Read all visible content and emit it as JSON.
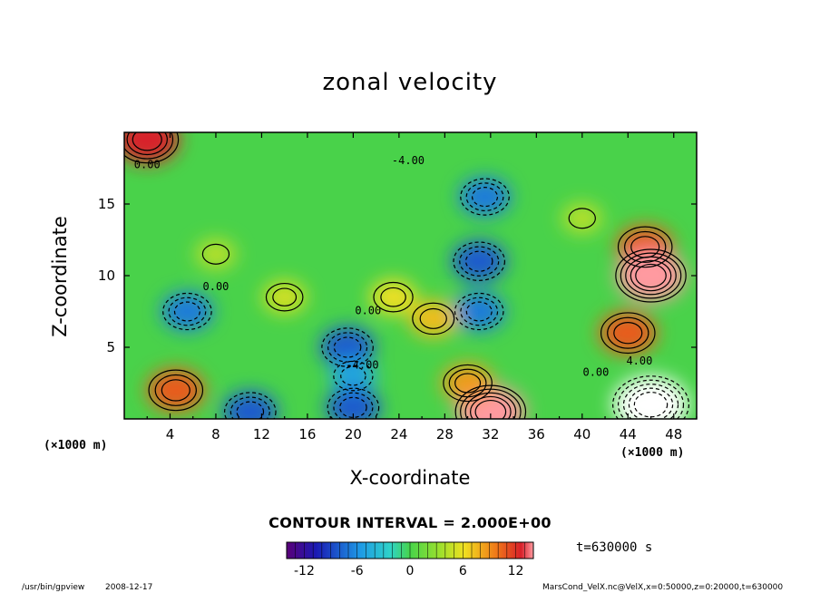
{
  "chart_data": {
    "type": "heatmap",
    "title": "zonal velocity",
    "xlabel": "X-coordinate",
    "ylabel": "Z-coordinate",
    "x_unit": "(×1000 m)",
    "y_unit": "(×1000 m)",
    "xlim": [
      0,
      50
    ],
    "ylim": [
      0,
      20
    ],
    "x_ticks": [
      "4",
      "8",
      "12",
      "16",
      "20",
      "24",
      "28",
      "32",
      "36",
      "40",
      "44",
      "48"
    ],
    "y_ticks": [
      "5",
      "10",
      "15"
    ],
    "contour_interval": "CONTOUR INTERVAL = 2.000E+00",
    "contour_labels": [
      {
        "text": "0.00",
        "x": 2.0,
        "z": 17.5
      },
      {
        "text": "-4.00",
        "x": 24.8,
        "z": 17.8
      },
      {
        "text": "0.00",
        "x": 8.0,
        "z": 9.0
      },
      {
        "text": "0.00",
        "x": 21.3,
        "z": 7.3
      },
      {
        "text": "-4.00",
        "x": 20.8,
        "z": 3.5
      },
      {
        "text": "0.00",
        "x": 41.2,
        "z": 3.0
      },
      {
        "text": "4.00",
        "x": 45.0,
        "z": 3.8
      }
    ],
    "colorbar": {
      "range": [
        -14,
        14
      ],
      "ticks": [
        "-12",
        "-6",
        "0",
        "6",
        "12"
      ],
      "colormap": "rainbow"
    },
    "time": "t=630000 s",
    "features": [
      {
        "x": 5.5,
        "z": 7.5,
        "value": -8
      },
      {
        "x": 19.5,
        "z": 5.0,
        "value": -9
      },
      {
        "x": 20.0,
        "z": 3.0,
        "value": -6
      },
      {
        "x": 31.0,
        "z": 11.0,
        "value": -9
      },
      {
        "x": 31.5,
        "z": 15.5,
        "value": -8
      },
      {
        "x": 31.0,
        "z": 7.5,
        "value": -8
      },
      {
        "x": 11.0,
        "z": 0.5,
        "value": -9
      },
      {
        "x": 20.0,
        "z": 0.8,
        "value": -9
      },
      {
        "x": 4.5,
        "z": 2.0,
        "value": 10
      },
      {
        "x": 32.0,
        "z": 0.5,
        "value": 14
      },
      {
        "x": 45.5,
        "z": 12.0,
        "value": 10
      },
      {
        "x": 46.0,
        "z": 10.0,
        "value": 14
      },
      {
        "x": 44.0,
        "z": 6.0,
        "value": 10
      },
      {
        "x": 46.0,
        "z": 1.0,
        "value": -16
      },
      {
        "x": 30.0,
        "z": 2.5,
        "value": 8
      },
      {
        "x": 27.0,
        "z": 7.0,
        "value": 7
      },
      {
        "x": 23.5,
        "z": 8.5,
        "value": 6
      },
      {
        "x": 14.0,
        "z": 8.5,
        "value": 5
      },
      {
        "x": 8.0,
        "z": 11.5,
        "value": 4
      },
      {
        "x": 2.0,
        "z": 19.5,
        "value": 12
      },
      {
        "x": 40.0,
        "z": 14.0,
        "value": 4
      }
    ]
  },
  "footer": {
    "left_path": "/usr/bin/gpview",
    "left_date": "2008-12-17",
    "right": "MarsCond_VelX.nc@VelX,x=0:50000,z=0:20000,t=630000"
  }
}
